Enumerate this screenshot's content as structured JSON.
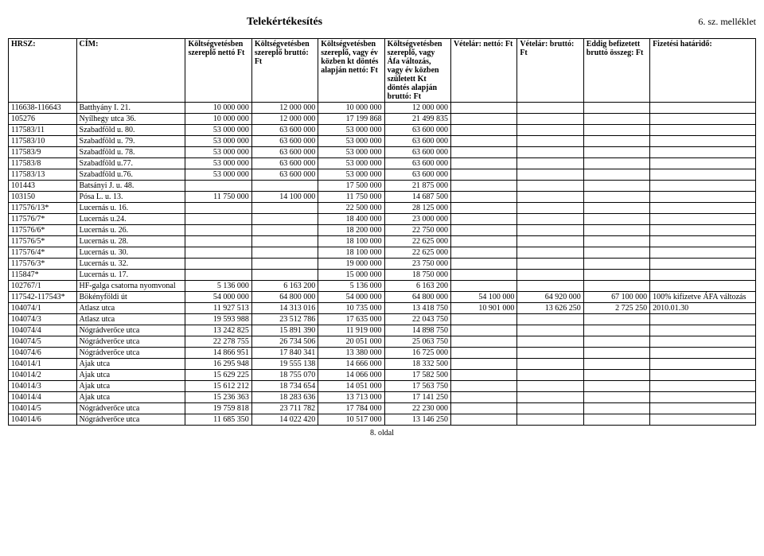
{
  "title": "Telekértékesítés",
  "appendix": "6. sz. melléklet",
  "footer": "8. oldal",
  "columns": [
    "HRSZ:",
    "CÍM:",
    "Költségvetésben szereplő nettó Ft",
    "Költségvetésben szereplő bruttó: Ft",
    "Költségvetésben szereplő, vagy év közben kt döntés alapján nettó: Ft",
    "Költségvetésben szereplő, vagy Áfa változás, vagy év közben született Kt döntés alapján bruttó: Ft",
    "Vételár: nettó: Ft",
    "Vételár: bruttó: Ft",
    "Eddig befizetett bruttó összeg: Ft",
    "Fizetési határidő:"
  ],
  "rows": [
    [
      "116638-116643",
      "Batthyány I. 21.",
      "10 000 000",
      "12 000 000",
      "10 000 000",
      "12 000 000",
      "",
      "",
      "",
      ""
    ],
    [
      "105276",
      "Nyílhegy utca 36.",
      "10 000 000",
      "12 000 000",
      "17 199 868",
      "21 499 835",
      "",
      "",
      "",
      ""
    ],
    [
      "117583/11",
      "Szabadföld u. 80.",
      "53 000 000",
      "63 600 000",
      "53 000 000",
      "63 600 000",
      "",
      "",
      "",
      ""
    ],
    [
      "117583/10",
      "Szabadföld u. 79.",
      "53 000 000",
      "63 600 000",
      "53 000 000",
      "63 600 000",
      "",
      "",
      "",
      ""
    ],
    [
      "117583/9",
      "Szabadföld u. 78.",
      "53 000 000",
      "63 600 000",
      "53 000 000",
      "63 600 000",
      "",
      "",
      "",
      ""
    ],
    [
      "117583/8",
      "Szabadföld u.77.",
      "53 000 000",
      "63 600 000",
      "53 000 000",
      "63 600 000",
      "",
      "",
      "",
      ""
    ],
    [
      "117583/13",
      "Szabadföld u.76.",
      "53 000 000",
      "63 600 000",
      "53 000 000",
      "63 600 000",
      "",
      "",
      "",
      ""
    ],
    [
      "101443",
      "Batsányi J. u. 48.",
      "",
      "",
      "17 500 000",
      "21 875 000",
      "",
      "",
      "",
      ""
    ],
    [
      "103150",
      "Pósa L. u. 13.",
      "11 750 000",
      "14 100 000",
      "11 750 000",
      "14 687 500",
      "",
      "",
      "",
      ""
    ],
    [
      "117576/13*",
      "Lucernás u. 16.",
      "",
      "",
      "22 500 000",
      "28 125 000",
      "",
      "",
      "",
      ""
    ],
    [
      "117576/7*",
      "Lucernás u.24.",
      "",
      "",
      "18 400 000",
      "23 000 000",
      "",
      "",
      "",
      ""
    ],
    [
      "117576/6*",
      "Lucernás u. 26.",
      "",
      "",
      "18 200 000",
      "22 750 000",
      "",
      "",
      "",
      ""
    ],
    [
      "117576/5*",
      "Lucernás u. 28.",
      "",
      "",
      "18 100 000",
      "22 625 000",
      "",
      "",
      "",
      ""
    ],
    [
      "117576/4*",
      "Lucernás u. 30.",
      "",
      "",
      "18 100 000",
      "22 625 000",
      "",
      "",
      "",
      ""
    ],
    [
      "117576/3*",
      "Lucernás u. 32.",
      "",
      "",
      "19 000 000",
      "23 750 000",
      "",
      "",
      "",
      ""
    ],
    [
      "115847*",
      "Lucernás u. 17.",
      "",
      "",
      "15 000 000",
      "18 750 000",
      "",
      "",
      "",
      ""
    ],
    [
      "102767/1",
      "HF-galga csatorna nyomvonal",
      "5 136 000",
      "6 163 200",
      "5 136 000",
      "6 163 200",
      "",
      "",
      "",
      ""
    ],
    [
      "117542-117543*",
      "Bökényföldi út",
      "54 000 000",
      "64 800 000",
      "54 000 000",
      "64 800 000",
      "54 100 000",
      "64 920 000",
      "67 100 000",
      "100% kifizetve ÁFA változás"
    ],
    [
      "104074/1",
      "Atlasz utca",
      "11 927 513",
      "14 313 016",
      "10 735 000",
      "13 418 750",
      "10 901 000",
      "13 626 250",
      "2 725 250",
      "2010.01.30"
    ],
    [
      "104074/3",
      "Atlasz utca",
      "19 593 988",
      "23 512 786",
      "17 635 000",
      "22 043 750",
      "",
      "",
      "",
      ""
    ],
    [
      "104074/4",
      "Nógrádverőce utca",
      "13 242 825",
      "15 891 390",
      "11 919 000",
      "14 898 750",
      "",
      "",
      "",
      ""
    ],
    [
      "104074/5",
      "Nógrádverőce utca",
      "22 278 755",
      "26 734 506",
      "20 051 000",
      "25 063 750",
      "",
      "",
      "",
      ""
    ],
    [
      "104074/6",
      "Nógrádverőce utca",
      "14 866 951",
      "17 840 341",
      "13 380 000",
      "16 725 000",
      "",
      "",
      "",
      ""
    ],
    [
      "104014/1",
      "Ajak utca",
      "16 295 948",
      "19 555 138",
      "14 666 000",
      "18 332 500",
      "",
      "",
      "",
      ""
    ],
    [
      "104014/2",
      "Ajak utca",
      "15 629 225",
      "18 755 070",
      "14 066 000",
      "17 582 500",
      "",
      "",
      "",
      ""
    ],
    [
      "104014/3",
      "Ajak utca",
      "15 612 212",
      "18 734 654",
      "14 051 000",
      "17 563 750",
      "",
      "",
      "",
      ""
    ],
    [
      "104014/4",
      "Ajak utca",
      "15 236 363",
      "18 283 636",
      "13 713 000",
      "17 141 250",
      "",
      "",
      "",
      ""
    ],
    [
      "104014/5",
      "Nógrádverőce utca",
      "19 759 818",
      "23 711 782",
      "17 784 000",
      "22 230 000",
      "",
      "",
      "",
      ""
    ],
    [
      "104014/6",
      "Nógrádverőce utca",
      "11 685 350",
      "14 022 420",
      "10 517 000",
      "13 146 250",
      "",
      "",
      "",
      ""
    ]
  ]
}
